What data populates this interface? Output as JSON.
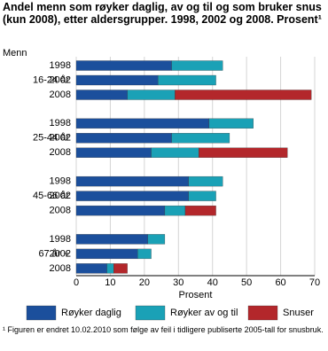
{
  "chart_data": {
    "type": "grouped_stacked_barh",
    "title": "Andel menn som røyker daglig, av og til og som bruker snus (kun 2008), etter aldersgrupper. 1998, 2002 og 2008. Prosent¹",
    "group_title": "Menn",
    "groups": [
      {
        "name": "16-24 år",
        "categories": [
          "1998",
          "2002",
          "2008"
        ]
      },
      {
        "name": "25-44 år",
        "categories": [
          "1998",
          "2002",
          "2008"
        ]
      },
      {
        "name": "45-66 år",
        "categories": [
          "1998",
          "2002",
          "2008"
        ]
      },
      {
        "name": "67 år +",
        "categories": [
          "1998",
          "2002",
          "2008"
        ]
      }
    ],
    "series": [
      {
        "name": "Røyker daglig",
        "color": "#1b4f9c",
        "values": [
          [
            28,
            24,
            15
          ],
          [
            39,
            28,
            22
          ],
          [
            33,
            33,
            26
          ],
          [
            21,
            18,
            9
          ]
        ]
      },
      {
        "name": "Røyker av og til",
        "color": "#1aa1b6",
        "values": [
          [
            15,
            17,
            14
          ],
          [
            13,
            17,
            14
          ],
          [
            10,
            8,
            6
          ],
          [
            5,
            4,
            2
          ]
        ]
      },
      {
        "name": "Snuser",
        "color": "#b3272b",
        "values": [
          [
            null,
            null,
            40
          ],
          [
            null,
            null,
            26
          ],
          [
            null,
            null,
            9
          ],
          [
            null,
            null,
            4
          ]
        ]
      }
    ],
    "xlabel": "Prosent",
    "xlim": [
      0,
      70
    ],
    "xticks": [
      0,
      10,
      20,
      30,
      40,
      50,
      60,
      70
    ],
    "grid": true,
    "footnote": "¹ Figuren er endret 10.02.2010 som følge av feil i tidligere publiserte 2005-tall for snusbruk."
  }
}
